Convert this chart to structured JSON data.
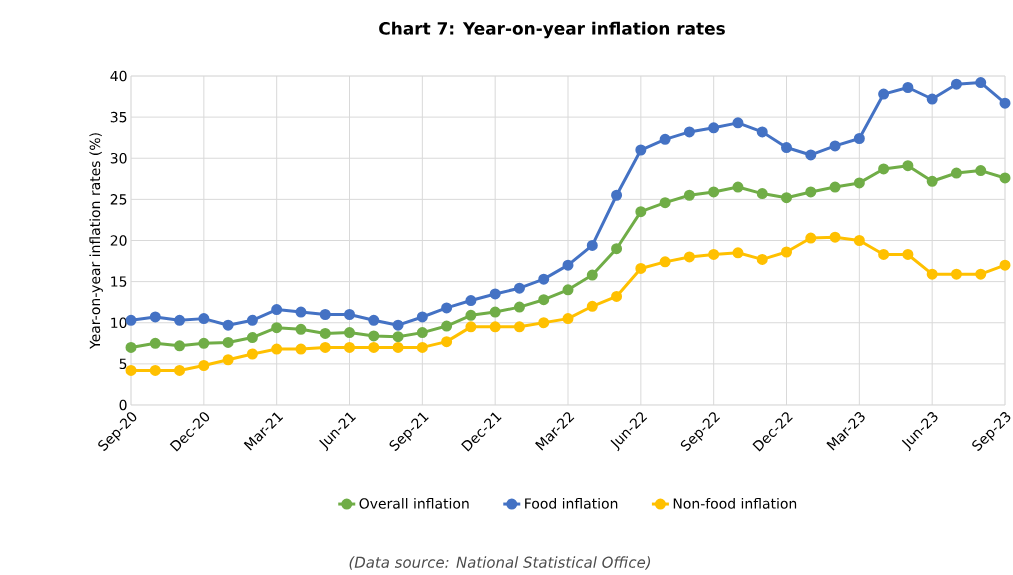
{
  "chart_data": {
    "type": "line",
    "title": "Chart 7: Year-on-year inflation rates",
    "ylabel": "Year-on-year inflation rates (%)",
    "categories": [
      "Sep-20",
      null,
      null,
      "Dec-20",
      null,
      null,
      "Mar-21",
      null,
      null,
      "Jun-21",
      null,
      null,
      "Sep-21",
      null,
      null,
      "Dec-21",
      null,
      null,
      "Mar-22",
      null,
      null,
      "Jun-22",
      null,
      null,
      "Sep-22",
      null,
      null,
      "Dec-22",
      null,
      null,
      "Mar-23",
      null,
      null,
      "Jun-23",
      null,
      null,
      "Sep-23"
    ],
    "series": [
      {
        "name": "Overall inflation",
        "color": "#70ad47",
        "values": [
          7.0,
          7.5,
          7.2,
          7.5,
          7.6,
          8.2,
          9.4,
          9.2,
          8.7,
          8.8,
          8.4,
          8.3,
          8.8,
          9.6,
          10.9,
          11.3,
          11.9,
          12.8,
          14.0,
          15.8,
          19.0,
          23.5,
          24.6,
          25.5,
          25.9,
          26.5,
          25.7,
          25.2,
          25.9,
          26.5,
          27.0,
          28.7,
          29.1,
          27.2,
          28.2,
          28.5,
          27.6
        ]
      },
      {
        "name": "Food inflation",
        "color": "#4472c4",
        "values": [
          10.3,
          10.7,
          10.3,
          10.5,
          9.7,
          10.3,
          11.6,
          11.3,
          11.0,
          11.0,
          10.3,
          9.7,
          10.7,
          11.8,
          12.7,
          13.5,
          14.2,
          15.3,
          17.0,
          19.4,
          25.5,
          31.0,
          32.3,
          33.2,
          33.7,
          34.3,
          33.2,
          31.3,
          30.4,
          31.5,
          32.4,
          37.8,
          38.6,
          37.2,
          39.0,
          39.2,
          36.7
        ]
      },
      {
        "name": "Non-food inflation",
        "color": "#ffc000",
        "values": [
          4.2,
          4.2,
          4.2,
          4.8,
          5.5,
          6.2,
          6.8,
          6.8,
          7.0,
          7.0,
          7.0,
          7.0,
          7.0,
          7.7,
          9.5,
          9.5,
          9.5,
          10.0,
          10.5,
          12.0,
          13.2,
          16.6,
          17.4,
          18.0,
          18.3,
          18.5,
          17.7,
          18.6,
          20.3,
          20.4,
          20.0,
          18.3,
          18.3,
          15.9,
          15.9,
          15.9,
          17.0
        ]
      }
    ],
    "ylim": [
      0,
      40
    ],
    "yticks": [
      0,
      5,
      10,
      15,
      20,
      25,
      30,
      35,
      40
    ],
    "grid": true,
    "legend": "bottom",
    "marker": "circle",
    "line_style": "solid",
    "annotations": [
      "(Data source: National Statistical Office)"
    ]
  }
}
